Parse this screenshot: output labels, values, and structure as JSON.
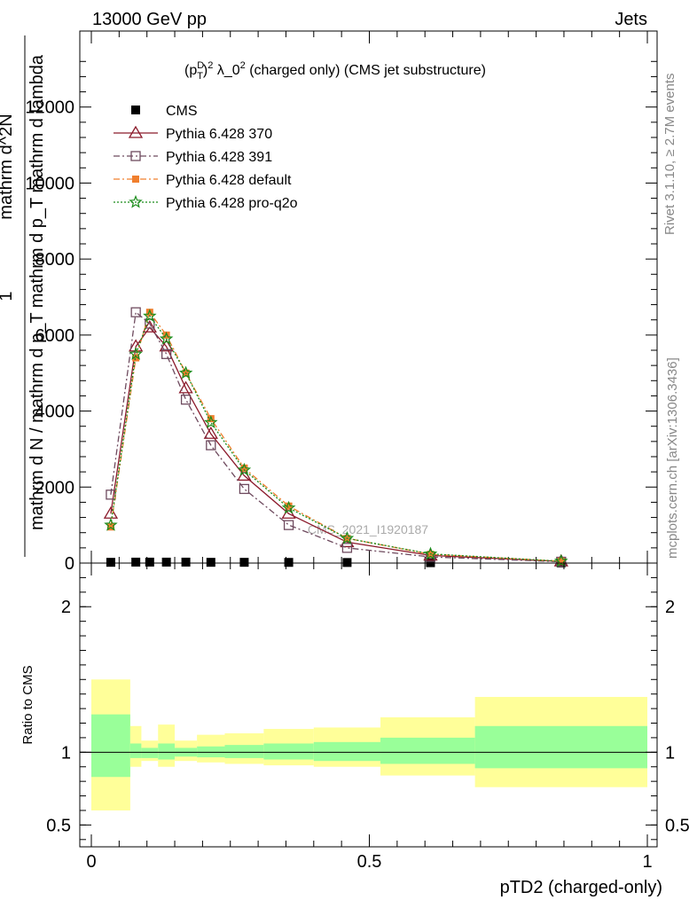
{
  "header": {
    "left": "13000 GeV pp",
    "right": "Jets"
  },
  "side_labels": {
    "rivet": "Rivet 3.1.10, ≥ 2.7M events",
    "mcplots": "mcplots.cern.ch [arXiv:1306.3436]"
  },
  "watermark": "CMS_2021_I1920187",
  "colors": {
    "cms": "#000000",
    "p370": "#8b1a2b",
    "p391": "#6e4a5e",
    "pdefault": "#f07f2e",
    "pq2o": "#1a8c1a",
    "band_inner": "#99ff99",
    "band_outer": "#ffff99"
  },
  "chart_data": [
    {
      "type": "line",
      "title": "(p_T^D)^2 λ_0^2 (charged only) (CMS jet substructure)",
      "title_parts": {
        "p": "(p",
        "D": "D",
        "T": "T",
        "close": ")",
        "sq1": "2",
        "lambda": " λ_0",
        "sq2": "2",
        "rest": " (charged only) (CMS jet substructure)"
      },
      "ylabel_numerator": "1",
      "ylabel_denominator": "mathrm d N / mathrm d p_T mathrm d p_T mathrm d lambda",
      "ylabel_overlay": "mathrm d^2N",
      "xlim": [
        0,
        1
      ],
      "ylim": [
        0,
        14000
      ],
      "y_ticks": [
        {
          "value": 0,
          "label": "0"
        },
        {
          "value": 2000,
          "label": "2000"
        },
        {
          "value": 4000,
          "label": "4000"
        },
        {
          "value": 6000,
          "label": "6000"
        },
        {
          "value": 8000,
          "label": "8000"
        },
        {
          "value": 10000,
          "label": "10000"
        },
        {
          "value": 12000,
          "label": "12000"
        }
      ],
      "legend_position": "top-left",
      "series": [
        {
          "name": "CMS",
          "marker": "filled-square",
          "line": "none",
          "x": [
            0.035,
            0.08,
            0.105,
            0.135,
            0.17,
            0.215,
            0.275,
            0.355,
            0.46,
            0.61,
            0.845
          ],
          "y": [
            20,
            25,
            25,
            25,
            25,
            20,
            20,
            18,
            15,
            10,
            5
          ]
        },
        {
          "name": "Pythia 6.428 370",
          "marker": "open-triangle",
          "line": "solid",
          "x": [
            0.035,
            0.08,
            0.105,
            0.135,
            0.17,
            0.215,
            0.275,
            0.355,
            0.46,
            0.61,
            0.845
          ],
          "y": [
            1300,
            5700,
            6200,
            5700,
            4600,
            3400,
            2300,
            1300,
            550,
            200,
            45
          ]
        },
        {
          "name": "Pythia 6.428 391",
          "marker": "open-square",
          "line": "dashdot",
          "x": [
            0.035,
            0.08,
            0.105,
            0.135,
            0.17,
            0.215,
            0.275,
            0.355,
            0.46,
            0.61,
            0.845
          ],
          "y": [
            1800,
            6600,
            6300,
            5500,
            4300,
            3100,
            1950,
            1000,
            400,
            160,
            35
          ]
        },
        {
          "name": "Pythia 6.428 default",
          "marker": "filled-square-small",
          "line": "dashdot",
          "x": [
            0.035,
            0.08,
            0.105,
            0.135,
            0.17,
            0.215,
            0.275,
            0.355,
            0.46,
            0.61,
            0.845
          ],
          "y": [
            950,
            5400,
            6600,
            6000,
            5000,
            3800,
            2500,
            1500,
            650,
            230,
            50
          ]
        },
        {
          "name": "Pythia 6.428 pro-q2o",
          "marker": "star",
          "line": "dotted",
          "x": [
            0.035,
            0.08,
            0.105,
            0.135,
            0.17,
            0.215,
            0.275,
            0.355,
            0.46,
            0.61,
            0.845
          ],
          "y": [
            1000,
            5500,
            6500,
            5900,
            5000,
            3700,
            2450,
            1450,
            650,
            240,
            50
          ]
        }
      ]
    },
    {
      "type": "area",
      "ylabel": "Ratio to CMS",
      "xlabel": "pTD2 (charged-only)",
      "xlim": [
        0,
        1
      ],
      "ylim": [
        0.35,
        2.3
      ],
      "reference_line": 1,
      "y_ticks": [
        {
          "value": 0.5,
          "label": "0.5"
        },
        {
          "value": 1,
          "label": "1"
        },
        {
          "value": 2,
          "label": "2"
        }
      ],
      "x_ticks": [
        {
          "value": 0,
          "label": "0"
        },
        {
          "value": 0.5,
          "label": "0.5"
        },
        {
          "value": 1,
          "label": "1"
        }
      ],
      "bins": [
        {
          "x0": 0.0,
          "x1": 0.07,
          "inner": [
            0.83,
            1.26
          ],
          "outer": [
            0.6,
            1.5
          ]
        },
        {
          "x0": 0.07,
          "x1": 0.09,
          "inner": [
            0.96,
            1.06
          ],
          "outer": [
            0.9,
            1.18
          ]
        },
        {
          "x0": 0.09,
          "x1": 0.12,
          "inner": [
            0.96,
            1.03
          ],
          "outer": [
            0.94,
            1.08
          ]
        },
        {
          "x0": 0.12,
          "x1": 0.15,
          "inner": [
            0.95,
            1.06
          ],
          "outer": [
            0.9,
            1.19
          ]
        },
        {
          "x0": 0.15,
          "x1": 0.19,
          "inner": [
            0.97,
            1.03
          ],
          "outer": [
            0.94,
            1.08
          ]
        },
        {
          "x0": 0.19,
          "x1": 0.24,
          "inner": [
            0.965,
            1.04
          ],
          "outer": [
            0.93,
            1.12
          ]
        },
        {
          "x0": 0.24,
          "x1": 0.31,
          "inner": [
            0.96,
            1.05
          ],
          "outer": [
            0.92,
            1.13
          ]
        },
        {
          "x0": 0.31,
          "x1": 0.4,
          "inner": [
            0.95,
            1.06
          ],
          "outer": [
            0.91,
            1.16
          ]
        },
        {
          "x0": 0.4,
          "x1": 0.52,
          "inner": [
            0.94,
            1.07
          ],
          "outer": [
            0.9,
            1.17
          ]
        },
        {
          "x0": 0.52,
          "x1": 0.69,
          "inner": [
            0.92,
            1.1
          ],
          "outer": [
            0.84,
            1.24
          ]
        },
        {
          "x0": 0.69,
          "x1": 1.0,
          "inner": [
            0.89,
            1.18
          ],
          "outer": [
            0.76,
            1.38
          ]
        }
      ]
    }
  ]
}
